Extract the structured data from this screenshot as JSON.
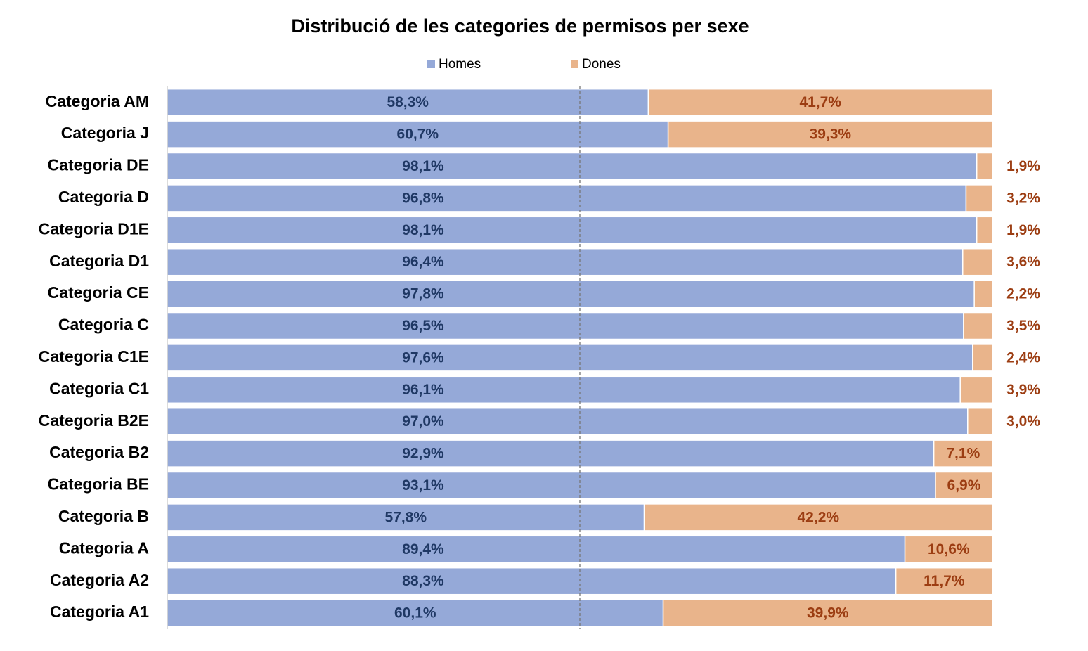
{
  "chart_data": {
    "type": "stacked-bar-100",
    "title": "Distribució de les categories de permisos per sexe",
    "categories": [
      "Categoria AM",
      "Categoria J",
      "Categoria DE",
      "Categoria D",
      "Categoria D1E",
      "Categoria D1",
      "Categoria CE",
      "Categoria C",
      "Categoria C1E",
      "Categoria C1",
      "Categoria B2E",
      "Categoria B2",
      "Categoria BE",
      "Categoria B",
      "Categoria A",
      "Categoria A2",
      "Categoria A1"
    ],
    "series": [
      {
        "name": "Homes",
        "color": "#95a9d8",
        "label_color": "#1f3864",
        "values": [
          58.3,
          60.7,
          98.1,
          96.8,
          98.1,
          96.4,
          97.8,
          96.5,
          97.6,
          96.1,
          97.0,
          92.9,
          93.1,
          57.8,
          89.4,
          88.3,
          60.1
        ],
        "value_labels": [
          "58,3%",
          "60,7%",
          "98,1%",
          "96,8%",
          "98,1%",
          "96,4%",
          "97,8%",
          "96,5%",
          "97,6%",
          "96,1%",
          "97,0%",
          "92,9%",
          "93,1%",
          "57,8%",
          "89,4%",
          "88,3%",
          "60,1%"
        ]
      },
      {
        "name": "Dones",
        "color": "#e9b48b",
        "label_color": "#9c3d12",
        "values": [
          41.7,
          39.3,
          1.9,
          3.2,
          1.9,
          3.6,
          2.2,
          3.5,
          2.4,
          3.9,
          3.0,
          7.1,
          6.9,
          42.2,
          10.6,
          11.7,
          39.9
        ],
        "value_labels": [
          "41,7%",
          "39,3%",
          "1,9%",
          "3,2%",
          "1,9%",
          "3,6%",
          "2,2%",
          "3,5%",
          "2,4%",
          "3,9%",
          "3,0%",
          "7,1%",
          "6,9%",
          "42,2%",
          "10,6%",
          "11,7%",
          "39,9%"
        ]
      }
    ],
    "xlim": [
      0,
      100
    ],
    "midline": 50
  }
}
